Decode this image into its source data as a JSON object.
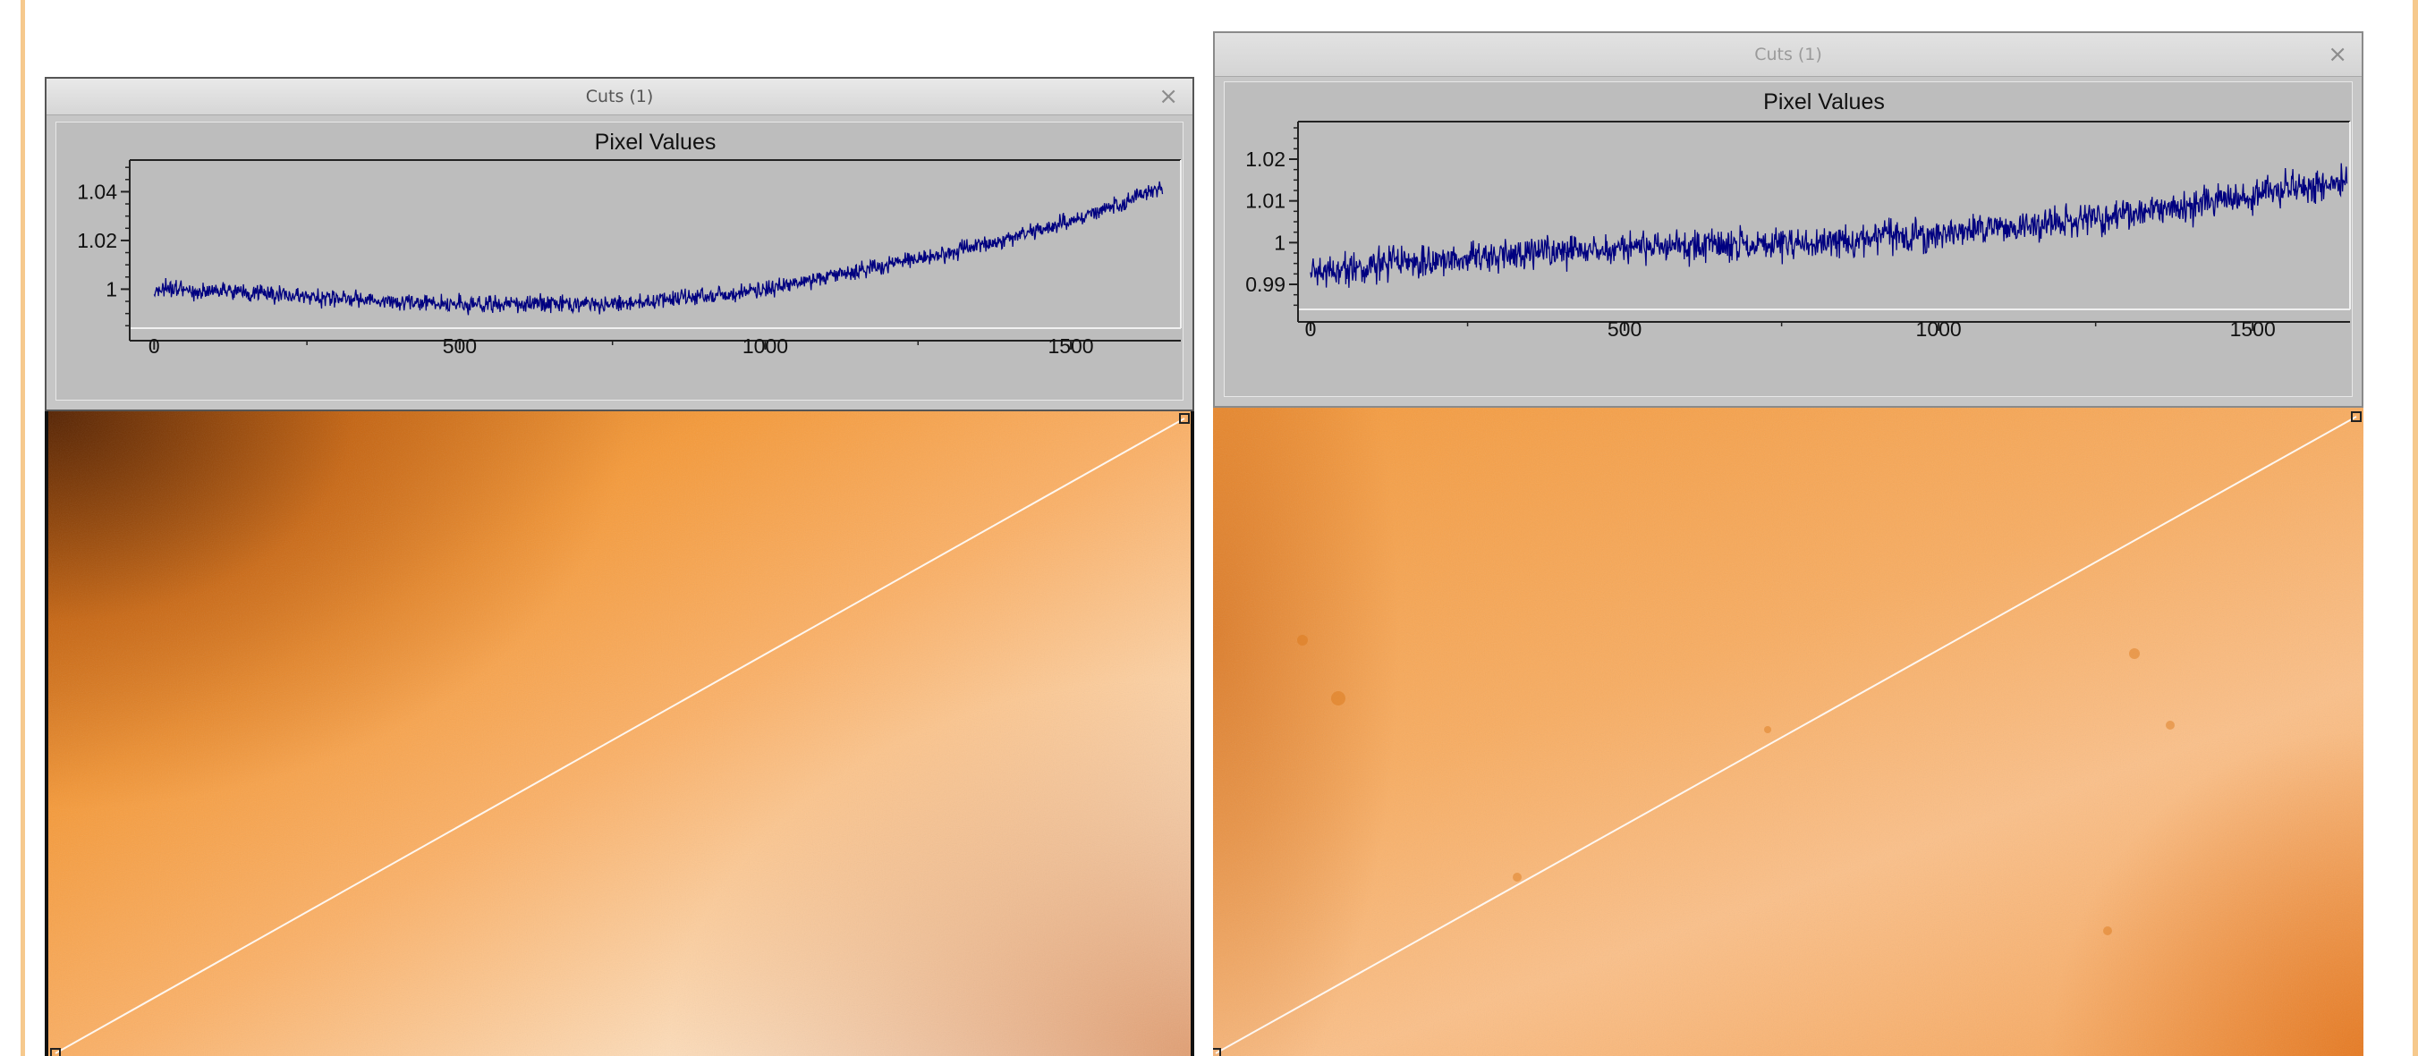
{
  "windows": [
    {
      "id": "left",
      "title": "Cuts (1)",
      "close_label": "×",
      "plot_title": "Pixel Values",
      "chart_data": {
        "type": "line",
        "title": "Pixel Values",
        "xlabel": "",
        "ylabel": "",
        "xlim": [
          -40,
          1680
        ],
        "ylim": [
          0.984,
          1.053
        ],
        "xticks": [
          0,
          500,
          1000,
          1500
        ],
        "xtick_labels": [
          "0",
          "500",
          "1000",
          "1500"
        ],
        "yticks": [
          1,
          1.02,
          1.04
        ],
        "ytick_labels": [
          "1",
          "1.02",
          "1.04"
        ],
        "grid": false,
        "series": [
          {
            "color": "#000080",
            "noise": 0.0032,
            "x": [
              0,
              100,
              200,
              300,
              400,
              500,
              600,
              700,
              800,
              900,
              1000,
              1100,
              1200,
              1300,
              1400,
              1500,
              1600,
              1650
            ],
            "y": [
              1.0,
              0.999,
              0.998,
              0.996,
              0.995,
              0.994,
              0.994,
              0.994,
              0.995,
              0.997,
              1.0,
              1.005,
              1.01,
              1.015,
              1.021,
              1.028,
              1.037,
              1.042
            ]
          }
        ]
      }
    },
    {
      "id": "right",
      "title": "Cuts (1)",
      "close_label": "×",
      "plot_title": "Pixel Values",
      "chart_data": {
        "type": "line",
        "title": "Pixel Values",
        "xlabel": "",
        "ylabel": "",
        "xlim": [
          -20,
          1655
        ],
        "ylim": [
          0.984,
          1.029
        ],
        "xticks": [
          0,
          500,
          1000,
          1500
        ],
        "xtick_labels": [
          "0",
          "500",
          "1000",
          "1500"
        ],
        "yticks": [
          0.99,
          1,
          1.01,
          1.02
        ],
        "ytick_labels": [
          "0.99",
          "1",
          "1.01",
          "1.02"
        ],
        "grid": false,
        "series": [
          {
            "color": "#000080",
            "noise": 0.0036,
            "x": [
              0,
              200,
              400,
              600,
              800,
              1000,
              1200,
              1400,
              1600,
              1650
            ],
            "y": [
              0.993,
              0.996,
              0.998,
              0.999,
              1.0,
              1.002,
              1.005,
              1.009,
              1.014,
              1.015
            ]
          }
        ]
      }
    }
  ],
  "images": [
    {
      "id": "left",
      "description_color": "#f5a040"
    },
    {
      "id": "right",
      "description_color": "#f7ad60"
    }
  ]
}
